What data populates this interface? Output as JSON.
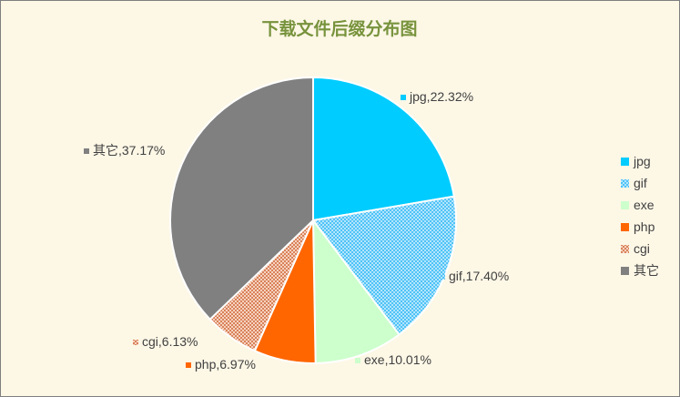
{
  "chart_data": {
    "type": "pie",
    "title": "下载文件后缀分布图",
    "categories": [
      "jpg",
      "gif",
      "exe",
      "php",
      "cgi",
      "其它"
    ],
    "values": [
      22.32,
      17.4,
      10.01,
      6.97,
      6.13,
      37.17
    ],
    "data_labels": [
      "jpg,22.32%",
      "gif,17.40%",
      "exe,10.01%",
      "php,6.97%",
      "cgi,6.13%",
      "其它,37.17%"
    ],
    "colors": [
      "#00ccff",
      "#66ccff",
      "#ccffcc",
      "#ff6600",
      "#e8a07c",
      "#808080"
    ],
    "patterns": [
      "solid",
      "checker",
      "solid",
      "solid",
      "checker",
      "solid"
    ],
    "legend_position": "right",
    "start_angle_deg": 0,
    "direction": "clockwise",
    "background": "#fdf7e6"
  }
}
